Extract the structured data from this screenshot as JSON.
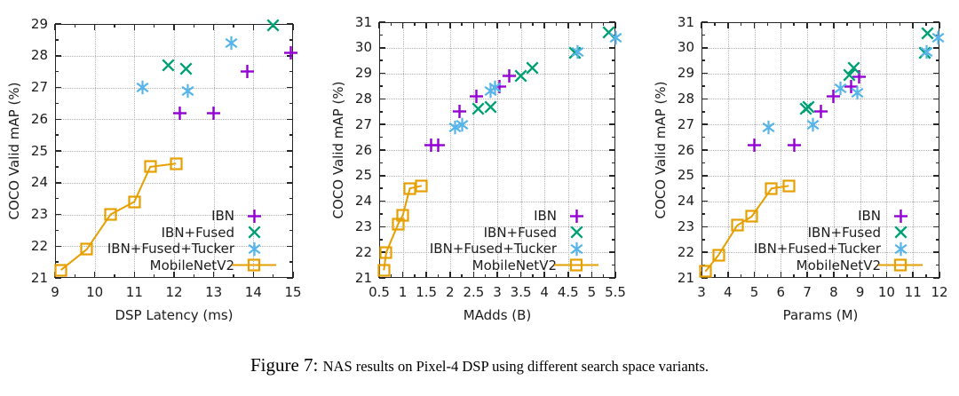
{
  "figure": {
    "caption_label": "Figure 7:",
    "caption_text": "NAS results on Pixel-4 DSP using different search space variants."
  },
  "palette": {
    "ibn": "#9400d3",
    "ibn_fused": "#009e73",
    "ibn_fused_tucker": "#56b4e9",
    "mobilenetv2": "#e69f00",
    "axis": "#262626",
    "grid": "#b0b0b0",
    "text": "#1c1c1c"
  },
  "chart_data": [
    {
      "type": "scatter",
      "title": "",
      "xlabel": "DSP Latency (ms)",
      "ylabel": "COCO Valid mAP (%)",
      "xlim": [
        9,
        15
      ],
      "ylim": [
        21,
        29
      ],
      "xticks": [
        9,
        10,
        11,
        12,
        13,
        14,
        15
      ],
      "yticks": [
        21,
        22,
        23,
        24,
        25,
        26,
        27,
        28,
        29
      ],
      "grid": true,
      "legend_position": "bottom-right",
      "series": [
        {
          "name": "IBN",
          "marker": "plus",
          "color": "#9400d3",
          "line": false,
          "points": [
            [
              12.15,
              26.2
            ],
            [
              13.0,
              26.2
            ],
            [
              13.85,
              27.5
            ],
            [
              14.95,
              28.1
            ]
          ]
        },
        {
          "name": "IBN+Fused",
          "marker": "x",
          "color": "#009e73",
          "line": false,
          "points": [
            [
              11.85,
              27.7
            ],
            [
              12.3,
              27.6
            ],
            [
              14.5,
              28.95
            ]
          ]
        },
        {
          "name": "IBN+Fused+Tucker",
          "marker": "asterisk",
          "color": "#56b4e9",
          "line": false,
          "points": [
            [
              11.2,
              27.0
            ],
            [
              12.35,
              26.9
            ],
            [
              13.45,
              28.4
            ]
          ]
        },
        {
          "name": "MobileNetV2",
          "marker": "square",
          "color": "#e69f00",
          "line": true,
          "points": [
            [
              9.15,
              21.25
            ],
            [
              9.8,
              21.9
            ],
            [
              10.4,
              23.0
            ],
            [
              11.0,
              23.4
            ],
            [
              11.4,
              24.5
            ],
            [
              12.05,
              24.6
            ]
          ]
        }
      ]
    },
    {
      "type": "scatter",
      "title": "",
      "xlabel": "MAdds (B)",
      "ylabel": "COCO Valid mAP (%)",
      "xlim": [
        0.5,
        5.5
      ],
      "ylim": [
        21,
        31
      ],
      "xticks": [
        0.5,
        1,
        1.5,
        2,
        2.5,
        3,
        3.5,
        4,
        4.5,
        5,
        5.5
      ],
      "yticks": [
        21,
        22,
        23,
        24,
        25,
        26,
        27,
        28,
        29,
        30,
        31
      ],
      "grid": true,
      "legend_position": "bottom-right",
      "series": [
        {
          "name": "IBN",
          "marker": "plus",
          "color": "#9400d3",
          "line": false,
          "points": [
            [
              1.6,
              26.2
            ],
            [
              1.75,
              26.2
            ],
            [
              2.2,
              27.5
            ],
            [
              2.55,
              28.1
            ],
            [
              3.05,
              28.5
            ],
            [
              3.25,
              28.9
            ]
          ]
        },
        {
          "name": "IBN+Fused",
          "marker": "x",
          "color": "#009e73",
          "line": false,
          "points": [
            [
              2.6,
              27.6
            ],
            [
              2.85,
              27.7
            ],
            [
              3.5,
              28.9
            ],
            [
              3.75,
              29.2
            ],
            [
              4.65,
              29.8
            ],
            [
              5.35,
              30.6
            ]
          ]
        },
        {
          "name": "IBN+Fused+Tucker",
          "marker": "asterisk",
          "color": "#56b4e9",
          "line": false,
          "points": [
            [
              2.1,
              26.9
            ],
            [
              2.25,
              27.0
            ],
            [
              2.85,
              28.3
            ],
            [
              2.95,
              28.45
            ],
            [
              4.7,
              29.85
            ],
            [
              5.5,
              30.4
            ]
          ]
        },
        {
          "name": "MobileNetV2",
          "marker": "square",
          "color": "#e69f00",
          "line": true,
          "points": [
            [
              0.6,
              21.3
            ],
            [
              0.65,
              22.0
            ],
            [
              0.9,
              23.1
            ],
            [
              1.0,
              23.45
            ],
            [
              1.15,
              24.5
            ],
            [
              1.4,
              24.6
            ]
          ]
        }
      ]
    },
    {
      "type": "scatter",
      "title": "",
      "xlabel": "Params (M)",
      "ylabel": "COCO Valid mAP (%)",
      "xlim": [
        3,
        12
      ],
      "ylim": [
        21,
        31
      ],
      "xticks": [
        3,
        4,
        5,
        6,
        7,
        8,
        9,
        10,
        11,
        12
      ],
      "yticks": [
        21,
        22,
        23,
        24,
        25,
        26,
        27,
        28,
        29,
        30,
        31
      ],
      "grid": true,
      "legend_position": "bottom-right",
      "series": [
        {
          "name": "IBN",
          "marker": "plus",
          "color": "#9400d3",
          "line": false,
          "points": [
            [
              5.0,
              26.2
            ],
            [
              6.5,
              26.2
            ],
            [
              7.5,
              27.5
            ],
            [
              8.0,
              28.1
            ],
            [
              8.65,
              28.5
            ],
            [
              8.95,
              28.85
            ]
          ]
        },
        {
          "name": "IBN+Fused",
          "marker": "x",
          "color": "#009e73",
          "line": false,
          "points": [
            [
              6.95,
              27.6
            ],
            [
              7.05,
              27.7
            ],
            [
              8.6,
              28.95
            ],
            [
              8.75,
              29.2
            ],
            [
              11.45,
              29.8
            ],
            [
              11.55,
              30.55
            ]
          ]
        },
        {
          "name": "IBN+Fused+Tucker",
          "marker": "asterisk",
          "color": "#56b4e9",
          "line": false,
          "points": [
            [
              5.55,
              26.9
            ],
            [
              7.2,
              27.0
            ],
            [
              8.25,
              28.4
            ],
            [
              8.9,
              28.25
            ],
            [
              11.5,
              29.85
            ],
            [
              11.95,
              30.4
            ]
          ]
        },
        {
          "name": "MobileNetV2",
          "marker": "square",
          "color": "#e69f00",
          "line": true,
          "points": [
            [
              3.15,
              21.25
            ],
            [
              3.65,
              21.9
            ],
            [
              4.35,
              23.05
            ],
            [
              4.9,
              23.4
            ],
            [
              5.65,
              24.5
            ],
            [
              6.3,
              24.6
            ]
          ]
        }
      ]
    }
  ]
}
